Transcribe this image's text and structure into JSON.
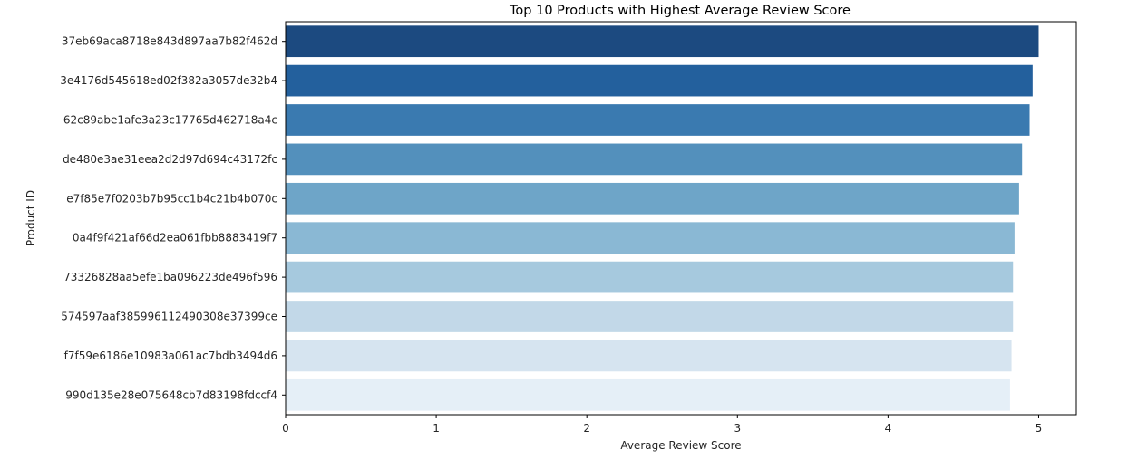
{
  "chart_data": {
    "type": "bar",
    "orientation": "horizontal",
    "title": "Top 10 Products with Highest Average Review Score",
    "xlabel": "Average Review Score",
    "ylabel": "Product ID",
    "xlim": [
      0,
      5.25
    ],
    "xticks": [
      0,
      1,
      2,
      3,
      4,
      5
    ],
    "grid": false,
    "categories": [
      "37eb69aca8718e843d897aa7b82f462d",
      "3e4176d545618ed02f382a3057de32b4",
      "62c89abe1afe3a23c17765d462718a4c",
      "de480e3ae31eea2d2d97d694c43172fc",
      "e7f85e7f0203b7b95cc1b4c21b4b070c",
      "0a4f9f421af66d2ea061fbb8883419f7",
      "73326828aa5efe1ba096223de496f596",
      "574597aaf385996112490308e37399ce",
      "f7f59e6186e10983a061ac7bdb3494d6",
      "990d135e28e075648cb7d83198fdccf4"
    ],
    "values": [
      5.0,
      4.96,
      4.94,
      4.89,
      4.87,
      4.84,
      4.83,
      4.83,
      4.82,
      4.81
    ],
    "colors": [
      "#1c4a80",
      "#23609d",
      "#3a7ab0",
      "#5390bc",
      "#6ea5c8",
      "#8ab8d4",
      "#a6c9de",
      "#c2d8e8",
      "#d6e4f0",
      "#e5eff7"
    ]
  }
}
